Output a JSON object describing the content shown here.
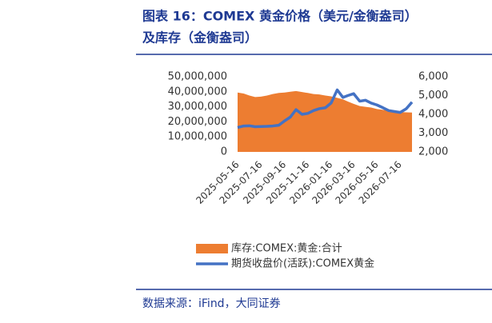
{
  "header": {
    "title_line1": "图表 16：COMEX 黄金价格（美元/金衡盎司）",
    "title_line2": "及库存（金衡盎司）"
  },
  "chart_data": {
    "type": "area-line",
    "x": [
      "2025-05-16",
      "2025-06-01",
      "2025-06-16",
      "2025-07-01",
      "2025-07-16",
      "2025-08-01",
      "2025-08-16",
      "2025-09-01",
      "2025-09-16",
      "2025-10-01",
      "2025-10-16",
      "2025-11-01",
      "2025-11-16",
      "2025-12-01",
      "2025-12-16",
      "2026-01-01",
      "2026-01-16",
      "2026-02-01",
      "2026-02-16",
      "2026-03-01",
      "2026-03-16",
      "2026-04-01",
      "2026-04-16",
      "2026-05-01",
      "2026-05-16",
      "2026-06-01",
      "2026-06-16",
      "2026-07-01",
      "2026-07-16",
      "2026-08-01",
      "2026-08-16"
    ],
    "xlim": [
      "2025-05-16",
      "2026-08-16"
    ],
    "xticks": [
      "2025-05-16",
      "2025-07-16",
      "2025-09-16",
      "2025-11-16",
      "2026-01-16",
      "2026-03-16",
      "2026-05-16",
      "2026-07-16"
    ],
    "series": [
      {
        "name": "库存:COMEX:黄金:合计",
        "color": "#ed7d31",
        "kind": "area",
        "values": [
          39500000,
          38800000,
          37500000,
          36500000,
          36800000,
          37500000,
          38500000,
          39200000,
          39500000,
          40000000,
          40500000,
          39800000,
          39200000,
          38500000,
          38200000,
          37500000,
          37000000,
          36000000,
          35000000,
          33500000,
          32000000,
          30500000,
          30000000,
          29500000,
          28500000,
          28000000,
          27500000,
          27000000,
          26500000,
          26300000,
          26200000
        ]
      },
      {
        "name": "期货收盘价(活跃):COMEX黄金",
        "color": "#4472c4",
        "kind": "line",
        "axis": "y2",
        "values": [
          3300,
          3380,
          3390,
          3340,
          3350,
          3360,
          3380,
          3420,
          3650,
          3850,
          4250,
          4000,
          4050,
          4200,
          4300,
          4350,
          4600,
          5300,
          4900,
          5000,
          5100,
          4700,
          4750,
          4600,
          4500,
          4350,
          4200,
          4150,
          4100,
          4300,
          4650
        ]
      }
    ],
    "ylim": [
      0,
      50000000
    ],
    "yticks": [
      0,
      {
        "value": 10000000,
        "label": "10,000,000"
      },
      {
        "value": 20000000,
        "label": "20,000,000"
      },
      {
        "value": 30000000,
        "label": "30,000,000"
      },
      {
        "value": 40000000,
        "label": "40,000,000"
      },
      {
        "value": 50000000,
        "label": "50,000,000"
      }
    ],
    "y2lim": [
      2000,
      6000
    ],
    "y2ticks": [
      {
        "value": 2000,
        "label": "2,000"
      },
      {
        "value": 3000,
        "label": "3,000"
      },
      {
        "value": 4000,
        "label": "4,000"
      },
      {
        "value": 5000,
        "label": "5,000"
      },
      {
        "value": 6000,
        "label": "6,000"
      }
    ]
  },
  "footer": {
    "source": "数据来源：iFind，大同证券"
  }
}
